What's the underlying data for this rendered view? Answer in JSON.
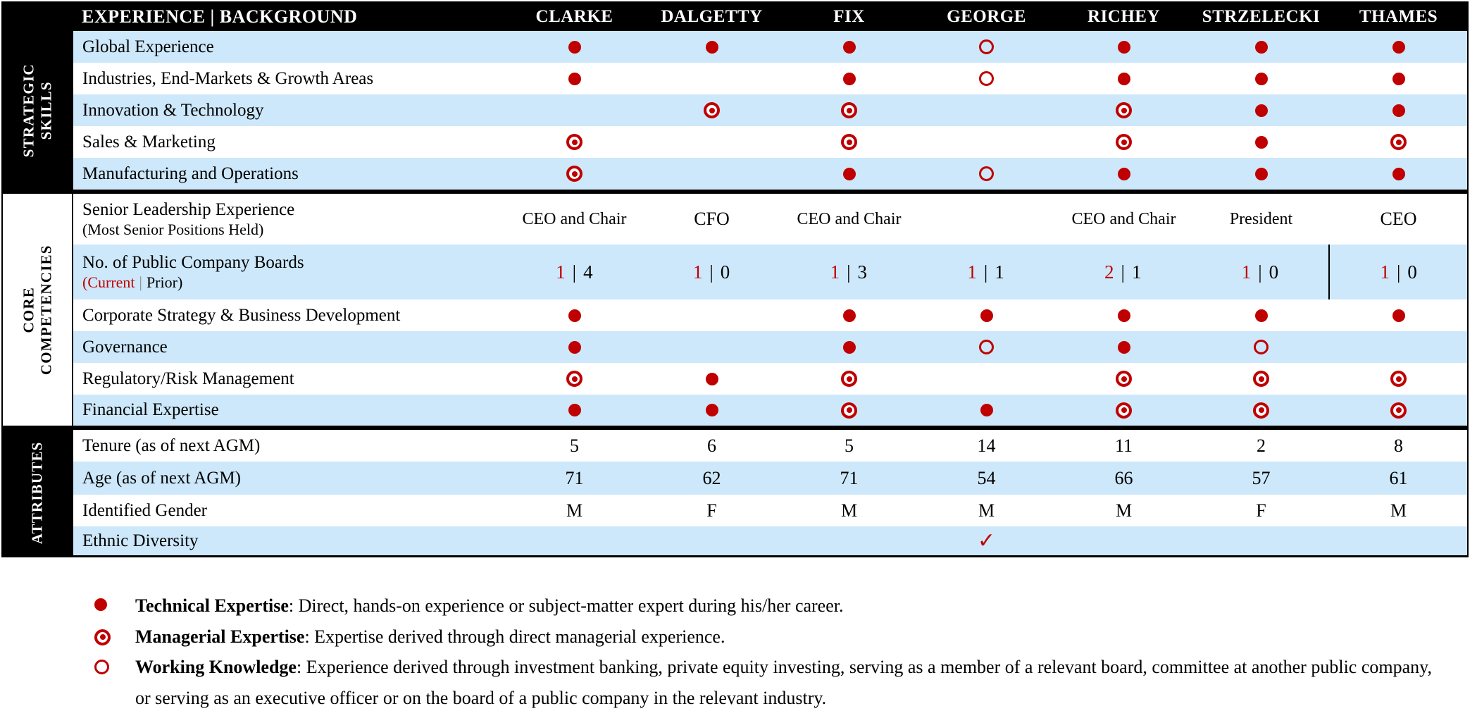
{
  "header": {
    "title": "EXPERIENCE | BACKGROUND",
    "columns": [
      "CLARKE",
      "DALGETTY",
      "FIX",
      "GEORGE",
      "RICHEY",
      "STRZELECKI",
      "THAMES"
    ]
  },
  "sections": [
    {
      "id": "strategic-skills",
      "label_lines": [
        "STRATEGIC",
        "SKILLS"
      ],
      "band_style": "dark",
      "rows": [
        {
          "label": "Global Experience",
          "type": "symbols",
          "values": [
            "technical",
            "technical",
            "technical",
            "working",
            "technical",
            "technical",
            "technical"
          ]
        },
        {
          "label": "Industries, End-Markets & Growth Areas",
          "type": "symbols",
          "values": [
            "technical",
            "",
            "technical",
            "working",
            "technical",
            "technical",
            "technical"
          ]
        },
        {
          "label": "Innovation & Technology",
          "type": "symbols",
          "values": [
            "",
            "managerial",
            "managerial",
            "",
            "managerial",
            "technical",
            "technical"
          ]
        },
        {
          "label": "Sales & Marketing",
          "type": "symbols",
          "values": [
            "managerial",
            "",
            "managerial",
            "",
            "managerial",
            "technical",
            "managerial"
          ]
        },
        {
          "label": "Manufacturing and Operations",
          "type": "symbols",
          "values": [
            "managerial",
            "",
            "technical",
            "working",
            "technical",
            "technical",
            "technical"
          ]
        }
      ]
    },
    {
      "id": "core-competencies",
      "label_lines": [
        "CORE",
        "COMPETENCIES"
      ],
      "band_style": "light",
      "rows": [
        {
          "label": "Senior Leadership Experience",
          "sublabel": "(Most Senior Positions Held)",
          "type": "text",
          "values": [
            "CEO and Chair",
            "CFO",
            "CEO and Chair",
            "",
            "CEO and Chair",
            "President",
            "CEO"
          ]
        },
        {
          "label": "No. of Public Company Boards",
          "type": "boards",
          "separator": "|",
          "divider_before_col": 6,
          "sublabel_parts": {
            "current": "(Current",
            "pipe": "|",
            "prior": "Prior)"
          },
          "values": [
            {
              "current": "1",
              "prior": "4"
            },
            {
              "current": "1",
              "prior": "0"
            },
            {
              "current": "1",
              "prior": "3"
            },
            {
              "current": "1",
              "prior": "1"
            },
            {
              "current": "2",
              "prior": "1"
            },
            {
              "current": "1",
              "prior": "0"
            },
            {
              "current": "1",
              "prior": "0"
            }
          ]
        },
        {
          "label": "Corporate Strategy & Business Development",
          "type": "symbols",
          "values": [
            "technical",
            "",
            "technical",
            "technical",
            "technical",
            "technical",
            "technical"
          ]
        },
        {
          "label": "Governance",
          "type": "symbols",
          "values": [
            "technical",
            "",
            "technical",
            "working",
            "technical",
            "working",
            ""
          ]
        },
        {
          "label": "Regulatory/Risk Management",
          "type": "symbols",
          "values": [
            "managerial",
            "technical",
            "managerial",
            "",
            "managerial",
            "managerial",
            "managerial"
          ]
        },
        {
          "label": "Financial Expertise",
          "type": "symbols",
          "values": [
            "technical",
            "technical",
            "managerial",
            "technical",
            "managerial",
            "managerial",
            "managerial"
          ]
        }
      ]
    },
    {
      "id": "attributes",
      "label_lines": [
        "ATTRIBUTES"
      ],
      "band_style": "dark",
      "rows": [
        {
          "label": "Tenure (as of next AGM)",
          "type": "text",
          "values": [
            "5",
            "6",
            "5",
            "14",
            "11",
            "2",
            "8"
          ]
        },
        {
          "label": "Age (as of next AGM)",
          "type": "text",
          "values": [
            "71",
            "62",
            "71",
            "54",
            "66",
            "57",
            "61"
          ]
        },
        {
          "label": "Identified Gender",
          "type": "text",
          "values": [
            "M",
            "F",
            "M",
            "M",
            "M",
            "F",
            "M"
          ]
        },
        {
          "label": "Ethnic Diversity",
          "type": "check",
          "values": [
            "",
            "",
            "",
            "✓",
            "",
            "",
            ""
          ]
        }
      ]
    }
  ],
  "legend": [
    {
      "symbol": "technical",
      "term": "Technical Expertise",
      "description": ": Direct, hands-on experience or subject-matter expert during his/her career."
    },
    {
      "symbol": "managerial",
      "term": "Managerial Expertise",
      "description": ": Expertise derived through direct managerial experience."
    },
    {
      "symbol": "working",
      "term": "Working Knowledge",
      "description": ": Experience derived through investment banking, private equity investing, serving as a member of a relevant board, committee at another public company, or serving as an executive officer or on the board of a public company in the relevant industry."
    }
  ],
  "colors": {
    "accent_red": "#C00000",
    "row_blue": "#CDE8FA",
    "band_black": "#000000"
  }
}
